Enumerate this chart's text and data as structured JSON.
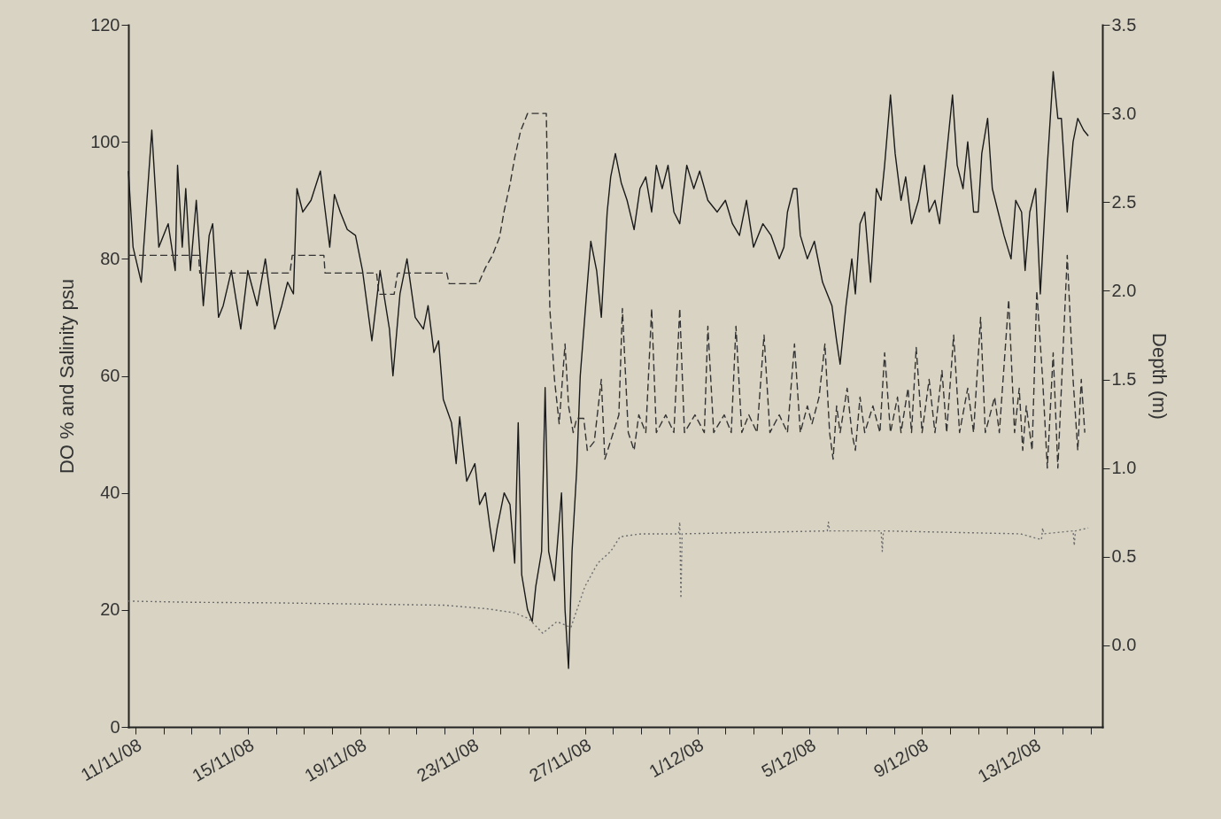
{
  "chart_data": {
    "type": "line",
    "ylabel": "DO % and Salinity psu",
    "y2label": "Depth (m)",
    "grid": false,
    "marker": "none",
    "xlim": [
      "--11-10T18:00",
      "--12-15T10:00"
    ],
    "xticks": [
      {
        "value": "--11-11",
        "label": "11/11/08"
      },
      {
        "value": "--11-12",
        "label": null
      },
      {
        "value": "--11-13",
        "label": null
      },
      {
        "value": "--11-14",
        "label": null
      },
      {
        "value": "--11-15",
        "label": "15/11/08"
      },
      {
        "value": "--11-16",
        "label": null
      },
      {
        "value": "--11-17",
        "label": null
      },
      {
        "value": "--11-18",
        "label": null
      },
      {
        "value": "--11-19",
        "label": "19/11/08"
      },
      {
        "value": "--11-20",
        "label": null
      },
      {
        "value": "--11-21",
        "label": null
      },
      {
        "value": "--11-22",
        "label": null
      },
      {
        "value": "--11-23",
        "label": "23/11/08"
      },
      {
        "value": "--11-24",
        "label": null
      },
      {
        "value": "--11-25",
        "label": null
      },
      {
        "value": "--11-26",
        "label": null
      },
      {
        "value": "--11-27",
        "label": "27/11/08"
      },
      {
        "value": "--11-28",
        "label": null
      },
      {
        "value": "--11-29",
        "label": null
      },
      {
        "value": "--11-30",
        "label": null
      },
      {
        "value": "--12-01",
        "label": "1/12/08"
      },
      {
        "value": "--12-02",
        "label": null
      },
      {
        "value": "--12-03",
        "label": null
      },
      {
        "value": "--12-04",
        "label": null
      },
      {
        "value": "--12-05",
        "label": "5/12/08"
      },
      {
        "value": "--12-06",
        "label": null
      },
      {
        "value": "--12-07",
        "label": null
      },
      {
        "value": "--12-08",
        "label": null
      },
      {
        "value": "--12-09",
        "label": "9/12/08"
      },
      {
        "value": "--12-10",
        "label": null
      },
      {
        "value": "--12-11",
        "label": null
      },
      {
        "value": "--12-12",
        "label": null
      },
      {
        "value": "--12-13",
        "label": "13/12/08"
      },
      {
        "value": "--12-14",
        "label": null
      },
      {
        "value": "--12-15",
        "label": null
      }
    ],
    "ylim": [
      0,
      120
    ],
    "yticks": [
      0,
      20,
      40,
      60,
      80,
      100,
      120
    ],
    "y2lim": [
      -0.46,
      3.5
    ],
    "y2ticks": [
      {
        "value": 0,
        "label": "0.0"
      },
      {
        "value": 0.5,
        "label": "0.5"
      },
      {
        "value": 1,
        "label": "1.0"
      },
      {
        "value": 1.5,
        "label": "1.5"
      },
      {
        "value": 2,
        "label": "2.0"
      },
      {
        "value": 2.5,
        "label": "2.5"
      },
      {
        "value": 3,
        "label": "3.0"
      },
      {
        "value": 3.5,
        "label": "3.5"
      }
    ],
    "series": [
      {
        "color": "#1a1a1a",
        "line_style": "solid",
        "x": [
          "--11-10T18:00",
          "--11-10T22:00",
          "--11-11T05:00",
          "--11-11T14:00",
          "--11-11T20:00",
          "--11-12T04:00",
          "--11-12T10:00",
          "--11-12T12:00",
          "--11-12T16:00",
          "--11-12T19:00",
          "--11-12T23:00",
          "--11-13T04:00",
          "--11-13T10:00",
          "--11-13T15:00",
          "--11-13T18:00",
          "--11-13T23:00",
          "--11-14T03:00",
          "--11-14T10:00",
          "--11-14T18:00",
          "--11-15T00:00",
          "--11-15T08:00",
          "--11-15T15:00",
          "--11-15T23:00",
          "--11-16T05:00",
          "--11-16T10:00",
          "--11-16T15:00",
          "--11-16T18:00",
          "--11-16T23:00",
          "--11-17T06:00",
          "--11-17T14:00",
          "--11-17T17:00",
          "--11-17T22:00",
          "--11-18T02:00",
          "--11-18T07:00",
          "--11-18T13:00",
          "--11-18T20:00",
          "--11-19T02:00",
          "--11-19T10:00",
          "--11-19T17:00",
          "--11-20T01:00",
          "--11-20T04:00",
          "--11-20T10:00",
          "--11-20T16:00",
          "--11-20T23:00",
          "--11-21T06:00",
          "--11-21T10:00",
          "--11-21T15:00",
          "--11-21T19:00",
          "--11-21T23:00",
          "--11-22T06:00",
          "--11-22T10:00",
          "--11-22T13:00",
          "--11-22T19:00",
          "--11-23T02:00",
          "--11-23T06:00",
          "--11-23T11:00",
          "--11-23T15:00",
          "--11-23T18:00",
          "--11-23T21:00",
          "--11-24T03:00",
          "--11-24T08:00",
          "--11-24T12:00",
          "--11-24T15:00",
          "--11-24T18:00",
          "--11-24T23:00",
          "--11-25T03:00",
          "--11-25T06:00",
          "--11-25T11:00",
          "--11-25T14:00",
          "--11-25T17:00",
          "--11-25T22:00",
          "--11-26T04:00",
          "--11-26T07:00",
          "--11-26T10:00",
          "--11-26T13:00",
          "--11-26T17:00",
          "--11-26T20:00",
          "--11-27T01:00",
          "--11-27T05:00",
          "--11-27T10:00",
          "--11-27T14:00",
          "--11-27T19:00",
          "--11-27T22:00",
          "--11-28T02:00",
          "--11-28T07:00",
          "--11-28T12:00",
          "--11-28T18:00",
          "--11-28T23:00",
          "--11-29T04:00",
          "--11-29T09:00",
          "--11-29T13:00",
          "--11-29T18:00",
          "--11-29T23:00",
          "--11-30T04:00",
          "--11-30T09:00",
          "--11-30T15:00",
          "--11-30T21:00",
          "--12-01T02:00",
          "--12-01T09:00",
          "--12-01T17:00",
          "--12-02T00:00",
          "--12-02T06:00",
          "--12-02T12:00",
          "--12-02T18:00",
          "--12-03T00:00",
          "--12-03T08:00",
          "--12-03T15:00",
          "--12-03T22:00",
          "--12-04T02:00",
          "--12-04T05:00",
          "--12-04T10:00",
          "--12-04T13:00",
          "--12-04T16:00",
          "--12-04T22:00",
          "--12-05T04:00",
          "--12-05T11:00",
          "--12-05T19:00",
          "--12-05T23:00",
          "--12-06T02:00",
          "--12-06T07:00",
          "--12-06T12:00",
          "--12-06T15:00",
          "--12-06T19:00",
          "--12-06T23:00",
          "--12-07T04:00",
          "--12-07T09:00",
          "--12-07T13:00",
          "--12-07T16:00",
          "--12-07T21:00",
          "--12-08T01:00",
          "--12-08T06:00",
          "--12-08T10:00",
          "--12-08T15:00",
          "--12-08T21:00",
          "--12-09T02:00",
          "--12-09T06:00",
          "--12-09T11:00",
          "--12-09T15:00",
          "--12-09T21:00",
          "--12-10T02:00",
          "--12-10T06:00",
          "--12-10T11:00",
          "--12-10T15:00",
          "--12-10T20:00",
          "--12-11T00:00",
          "--12-11T03:00",
          "--12-11T08:00",
          "--12-11T12:00",
          "--12-11T17:00",
          "--12-11T22:00",
          "--12-12T04:00",
          "--12-12T08:00",
          "--12-12T13:00",
          "--12-12T16:00",
          "--12-12T20:00",
          "--12-13T01:00",
          "--12-13T05:00",
          "--12-13T11:00",
          "--12-13T16:00",
          "--12-13T20:00",
          "--12-13T23:00",
          "--12-14T04:00",
          "--12-14T09:00",
          "--12-14T13:00",
          "--12-14T18:00",
          "--12-14T22:00"
        ],
        "values": [
          95,
          82,
          76,
          102,
          82,
          86,
          78,
          96,
          82,
          92,
          78,
          90,
          72,
          84,
          86,
          70,
          72,
          78,
          68,
          78,
          72,
          80,
          68,
          72,
          76,
          74,
          92,
          88,
          90,
          95,
          90,
          82,
          91,
          88,
          85,
          84,
          78,
          66,
          78,
          68,
          60,
          74,
          80,
          70,
          68,
          72,
          64,
          66,
          56,
          52,
          45,
          53,
          42,
          45,
          38,
          40,
          34,
          30,
          34,
          40,
          38,
          28,
          52,
          26,
          20,
          18,
          24,
          30,
          58,
          30,
          25,
          40,
          20,
          10,
          30,
          44,
          60,
          73,
          83,
          78,
          70,
          88,
          94,
          98,
          93,
          90,
          85,
          92,
          94,
          88,
          96,
          92,
          96,
          88,
          86,
          96,
          92,
          95,
          90,
          88,
          90,
          86,
          84,
          90,
          82,
          86,
          84,
          80,
          82,
          88,
          92,
          92,
          84,
          80,
          83,
          76,
          72,
          66,
          62,
          72,
          80,
          74,
          86,
          88,
          76,
          92,
          90,
          96,
          108,
          98,
          90,
          94,
          86,
          90,
          96,
          88,
          90,
          86,
          98,
          108,
          96,
          92,
          100,
          88,
          88,
          98,
          104,
          92,
          88,
          84,
          80,
          90,
          88,
          78,
          88,
          92,
          74,
          96,
          112,
          104,
          104,
          88,
          100,
          104,
          102,
          101
        ]
      },
      {
        "color": "#333333",
        "line_style": "dashed",
        "axis": "y2",
        "x": [
          "--11-10T18:00",
          "--11-13T06:00",
          "--11-13T07:00",
          "--11-16T12:00",
          "--11-16T14:00",
          "--11-17T17:00",
          "--11-17T18:00",
          "--11-19T14:00",
          "--11-19T16:00",
          "--11-20T05:00",
          "--11-20T08:00",
          "--11-22T02:00",
          "--11-22T04:00",
          "--11-23T05:00",
          "--11-23T11:00",
          "--11-23T17:00",
          "--11-23T23:00",
          "--11-24T03:00",
          "--11-24T08:00",
          "--11-24T12:00",
          "--11-24T17:00",
          "--11-24T23:00",
          "--11-25T15:00",
          "--11-25T18:00",
          "--11-25T22:00",
          "--11-26T02:00",
          "--11-26T07:00",
          "--11-26T10:00",
          "--11-26T14:00",
          "--11-26T17:00",
          "--11-26T23:00",
          "--11-27T02:00",
          "--11-27T08:00",
          "--11-27T14:00",
          "--11-27T17:00",
          "--11-28T05:00",
          "--11-28T08:00",
          "--11-28T13:00",
          "--11-28T18:00",
          "--11-28T22:00",
          "--11-29T04:00",
          "--11-29T09:00",
          "--11-29T13:00",
          "--11-29T21:00",
          "--11-30T04:00",
          "--11-30T09:00",
          "--11-30T13:00",
          "--11-30T22:00",
          "--12-01T06:00",
          "--12-01T09:00",
          "--12-01T14:00",
          "--12-01T23:00",
          "--12-02T05:00",
          "--12-02T09:00",
          "--12-02T14:00",
          "--12-02T20:00",
          "--12-03T03:00",
          "--12-03T09:00",
          "--12-03T14:00",
          "--12-03T22:00",
          "--12-04T05:00",
          "--12-04T11:00",
          "--12-04T16:00",
          "--12-04T22:00",
          "--12-05T02:00",
          "--12-05T08:00",
          "--12-05T13:00",
          "--12-05T17:00",
          "--12-05T20:00",
          "--12-05T23:00",
          "--12-06T02:00",
          "--12-06T08:00",
          "--12-06T12:00",
          "--12-06T15:00",
          "--12-06T19:00",
          "--12-06T23:00",
          "--12-07T06:00",
          "--12-07T12:00",
          "--12-07T16:00",
          "--12-07T21:00",
          "--12-08T03:00",
          "--12-08T06:00",
          "--12-08T12:00",
          "--12-08T15:00",
          "--12-08T19:00",
          "--12-09T00:00",
          "--12-09T06:00",
          "--12-09T11:00",
          "--12-09T17:00",
          "--12-09T21:00",
          "--12-10T03:00",
          "--12-10T08:00",
          "--12-10T15:00",
          "--12-10T20:00",
          "--12-11T02:00",
          "--12-11T06:00",
          "--12-11T14:00",
          "--12-11T18:00",
          "--12-12T02:00",
          "--12-12T07:00",
          "--12-12T11:00",
          "--12-12T14:00",
          "--12-12T17:00",
          "--12-12T22:00",
          "--12-13T02:00",
          "--12-13T07:00",
          "--12-13T11:00",
          "--12-13T16:00",
          "--12-13T20:00",
          "--12-14T04:00",
          "--12-14T09:00",
          "--12-14T13:00",
          "--12-14T16:00",
          "--12-14T19:00"
        ],
        "values": [
          2.2,
          2.2,
          2.1,
          2.1,
          2.2,
          2.2,
          2.1,
          2.1,
          1.98,
          1.98,
          2.1,
          2.1,
          2.04,
          2.04,
          2.13,
          2.2,
          2.3,
          2.45,
          2.6,
          2.75,
          2.9,
          3.0,
          3.0,
          1.9,
          1.5,
          1.25,
          1.7,
          1.35,
          1.2,
          1.28,
          1.28,
          1.1,
          1.15,
          1.5,
          1.05,
          1.3,
          1.9,
          1.2,
          1.1,
          1.3,
          1.2,
          1.9,
          1.2,
          1.3,
          1.2,
          1.9,
          1.2,
          1.3,
          1.2,
          1.8,
          1.2,
          1.3,
          1.2,
          1.8,
          1.2,
          1.3,
          1.2,
          1.75,
          1.2,
          1.3,
          1.2,
          1.7,
          1.2,
          1.35,
          1.25,
          1.4,
          1.7,
          1.2,
          1.05,
          1.35,
          1.2,
          1.45,
          1.2,
          1.1,
          1.4,
          1.2,
          1.35,
          1.2,
          1.65,
          1.2,
          1.4,
          1.2,
          1.45,
          1.2,
          1.68,
          1.2,
          1.5,
          1.2,
          1.55,
          1.2,
          1.75,
          1.2,
          1.45,
          1.2,
          1.85,
          1.2,
          1.4,
          1.2,
          1.95,
          1.2,
          1.45,
          1.1,
          1.35,
          1.1,
          2.0,
          1.5,
          1.0,
          1.65,
          1.0,
          2.2,
          1.5,
          1.1,
          1.5,
          1.2
        ]
      },
      {
        "color": "#6e6e6e",
        "line_style": "dotted",
        "x": [
          "--11-10T18:00",
          "--11-13T00:00",
          "--11-16T00:00",
          "--11-19T00:00",
          "--11-22T00:00",
          "--11-23T12:00",
          "--11-24T12:00",
          "--11-25T00:00",
          "--11-25T12:00",
          "--11-26T00:00",
          "--11-26T12:00",
          "--11-27T00:00",
          "--11-27T11:00",
          "--11-27T22:00",
          "--11-28T06:00",
          "--11-29T00:00",
          "--11-30T08:00",
          "--11-30T09:00",
          "--11-30T10:00",
          "--11-30T11:00",
          "--12-05T15:00",
          "--12-05T16:00",
          "--12-05T17:00",
          "--12-07T13:00",
          "--12-07T14:00",
          "--12-07T15:00",
          "--12-12T12:00",
          "--12-13T06:00",
          "--12-13T07:00",
          "--12-13T08:00",
          "--12-14T09:00",
          "--12-14T10:00",
          "--12-14T11:00",
          "--12-14T22:00"
        ],
        "values": [
          21.5,
          21.3,
          21.2,
          21,
          20.8,
          20.2,
          19.5,
          18.5,
          16,
          18,
          17,
          24,
          28,
          30,
          32.5,
          33,
          33,
          35,
          22,
          33,
          33.5,
          35,
          33.5,
          33.5,
          30,
          33.5,
          33,
          32,
          34,
          33,
          33.5,
          31,
          33.5,
          34
        ]
      }
    ]
  }
}
